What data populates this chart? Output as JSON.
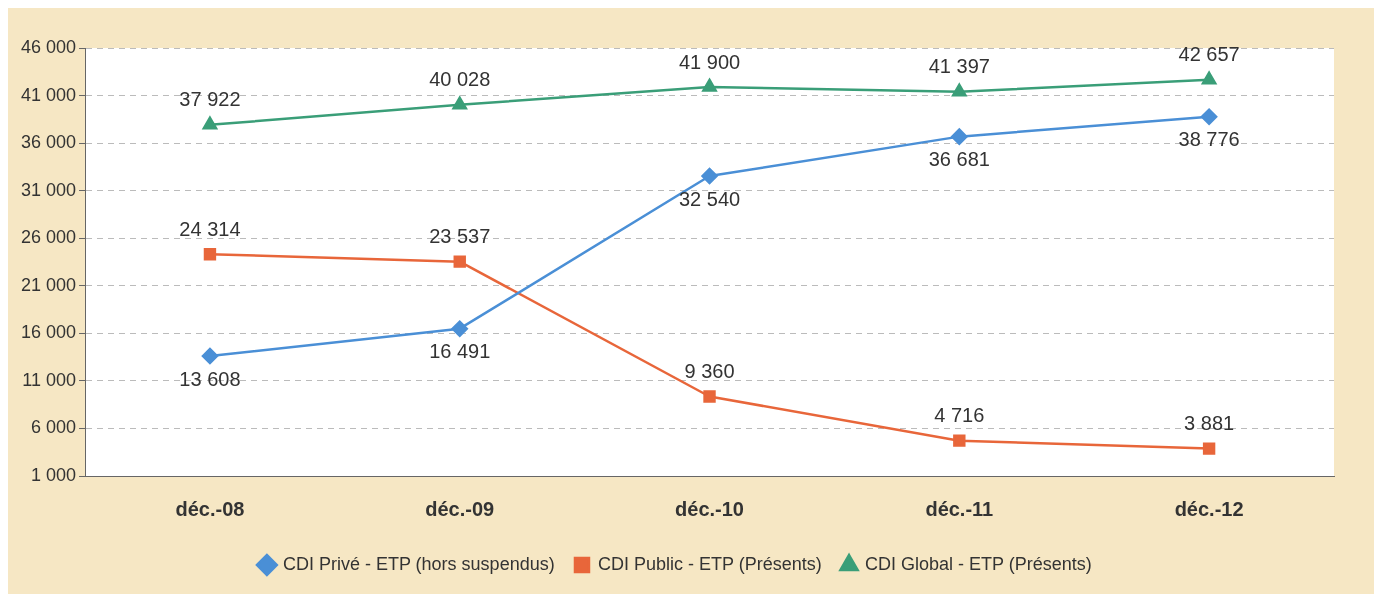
{
  "chart_data": {
    "type": "line",
    "categories": [
      "déc.-08",
      "déc.-09",
      "déc.-10",
      "déc.-11",
      "déc.-12"
    ],
    "series": [
      {
        "name": "CDI Privé - ETP (hors suspendus)",
        "color": "#4a8fd6",
        "marker": "diamond",
        "values": [
          13608,
          16491,
          32540,
          36681,
          38776
        ],
        "value_labels": [
          "13 608",
          "16 491",
          "32 540",
          "36 681",
          "38 776"
        ]
      },
      {
        "name": "CDI Public - ETP (Présents)",
        "color": "#e8663a",
        "marker": "square",
        "values": [
          24314,
          23537,
          9360,
          4716,
          3881
        ],
        "value_labels": [
          "24 314",
          "23 537",
          "9 360",
          "4 716",
          "3 881"
        ]
      },
      {
        "name": "CDI Global - ETP (Présents)",
        "color": "#3a9e78",
        "marker": "triangle",
        "values": [
          37922,
          40028,
          41900,
          41397,
          42657
        ],
        "value_labels": [
          "37 922",
          "40 028",
          "41 900",
          "41 397",
          "42 657"
        ]
      }
    ],
    "ylim": [
      1000,
      46000
    ],
    "yticks": [
      {
        "value": 1000,
        "label": "1 000"
      },
      {
        "value": 6000,
        "label": "6 000"
      },
      {
        "value": 11000,
        "label": "11 000"
      },
      {
        "value": 16000,
        "label": "16 000"
      },
      {
        "value": 21000,
        "label": "21 000"
      },
      {
        "value": 26000,
        "label": "26 000"
      },
      {
        "value": 31000,
        "label": "31 000"
      },
      {
        "value": 36000,
        "label": "36 000"
      },
      {
        "value": 41000,
        "label": "41 000"
      },
      {
        "value": 46000,
        "label": "46 000"
      }
    ],
    "grid": "y",
    "legend": "bottom",
    "line_style": "solid"
  }
}
